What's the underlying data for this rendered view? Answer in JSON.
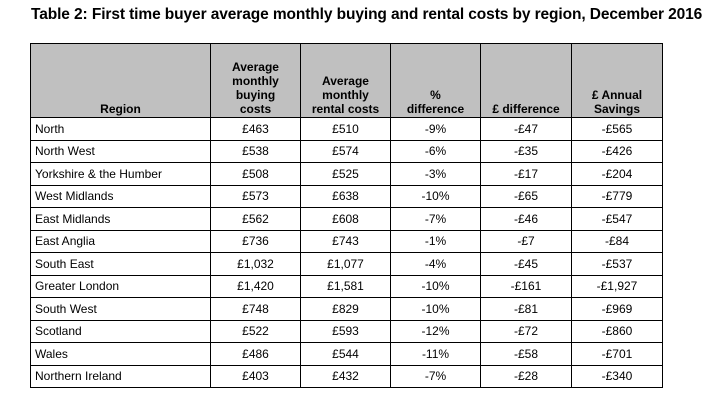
{
  "title": "Table 2: First time buyer average monthly buying and rental costs by region, December 2016",
  "columns": [
    "Region",
    "Average monthly buying costs",
    "Average monthly rental costs",
    "% difference",
    "£ difference",
    "£ Annual Savings"
  ],
  "column_header_lines": [
    [
      "Region"
    ],
    [
      "Average",
      "monthly",
      "buying",
      "costs"
    ],
    [
      "Average",
      "monthly",
      "rental costs"
    ],
    [
      "%",
      "difference"
    ],
    [
      "£ difference"
    ],
    [
      "£ Annual",
      "Savings"
    ]
  ],
  "rows": [
    {
      "region": "North",
      "buying": "£463",
      "rental": "£510",
      "pct_diff": "-9%",
      "gbp_diff": "-£47",
      "annual_savings": "-£565"
    },
    {
      "region": "North West",
      "buying": "£538",
      "rental": "£574",
      "pct_diff": "-6%",
      "gbp_diff": "-£35",
      "annual_savings": "-£426"
    },
    {
      "region": "Yorkshire & the Humber",
      "buying": "£508",
      "rental": "£525",
      "pct_diff": "-3%",
      "gbp_diff": "-£17",
      "annual_savings": "-£204"
    },
    {
      "region": "West Midlands",
      "buying": "£573",
      "rental": "£638",
      "pct_diff": "-10%",
      "gbp_diff": "-£65",
      "annual_savings": "-£779"
    },
    {
      "region": "East Midlands",
      "buying": "£562",
      "rental": "£608",
      "pct_diff": "-7%",
      "gbp_diff": "-£46",
      "annual_savings": "-£547"
    },
    {
      "region": "East Anglia",
      "buying": "£736",
      "rental": "£743",
      "pct_diff": "-1%",
      "gbp_diff": "-£7",
      "annual_savings": "-£84"
    },
    {
      "region": "South East",
      "buying": "£1,032",
      "rental": "£1,077",
      "pct_diff": "-4%",
      "gbp_diff": "-£45",
      "annual_savings": "-£537"
    },
    {
      "region": "Greater London",
      "buying": "£1,420",
      "rental": "£1,581",
      "pct_diff": "-10%",
      "gbp_diff": "-£161",
      "annual_savings": "-£1,927"
    },
    {
      "region": "South West",
      "buying": "£748",
      "rental": "£829",
      "pct_diff": "-10%",
      "gbp_diff": "-£81",
      "annual_savings": "-£969"
    },
    {
      "region": "Scotland",
      "buying": "£522",
      "rental": "£593",
      "pct_diff": "-12%",
      "gbp_diff": "-£72",
      "annual_savings": "-£860"
    },
    {
      "region": "Wales",
      "buying": "£486",
      "rental": "£544",
      "pct_diff": "-11%",
      "gbp_diff": "-£58",
      "annual_savings": "-£701"
    },
    {
      "region": "Northern Ireland",
      "buying": "£403",
      "rental": "£432",
      "pct_diff": "-7%",
      "gbp_diff": "-£28",
      "annual_savings": "-£340"
    }
  ],
  "colors": {
    "header_background": "#c0c0c0",
    "border": "#000000",
    "text": "#000000"
  }
}
